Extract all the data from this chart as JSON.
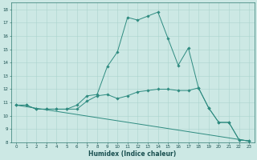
{
  "title": "",
  "xlabel": "Humidex (Indice chaleur)",
  "xlim": [
    -0.5,
    23.5
  ],
  "ylim": [
    8,
    18.5
  ],
  "yticks": [
    8,
    9,
    10,
    11,
    12,
    13,
    14,
    15,
    16,
    17,
    18
  ],
  "xticks": [
    0,
    1,
    2,
    3,
    4,
    5,
    6,
    7,
    8,
    9,
    10,
    11,
    12,
    13,
    14,
    15,
    16,
    17,
    18,
    19,
    20,
    21,
    22,
    23
  ],
  "line_color": "#2e8b80",
  "bg_color": "#cce8e4",
  "grid_color": "#aad4ce",
  "lines": [
    {
      "x": [
        0,
        1,
        2,
        3,
        4,
        5,
        6,
        7,
        8,
        9,
        10,
        11,
        12,
        13,
        14,
        15,
        16,
        17,
        18,
        19,
        20,
        21,
        22,
        23
      ],
      "y": [
        10.8,
        10.8,
        10.5,
        10.5,
        10.5,
        10.5,
        10.5,
        11.1,
        11.5,
        11.6,
        11.3,
        11.5,
        11.8,
        11.9,
        12.0,
        12.0,
        11.9,
        11.9,
        12.1,
        10.6,
        9.5,
        9.5,
        8.2,
        8.1
      ],
      "marker": true
    },
    {
      "x": [
        0,
        1,
        2,
        3,
        4,
        5,
        6,
        7,
        8,
        9,
        10,
        11,
        12,
        13,
        14,
        15,
        16,
        17,
        18,
        19,
        20,
        21,
        22,
        23
      ],
      "y": [
        10.8,
        10.8,
        10.5,
        10.5,
        10.5,
        10.5,
        10.8,
        11.5,
        11.6,
        13.7,
        14.8,
        17.4,
        17.2,
        17.5,
        17.8,
        15.8,
        13.8,
        15.1,
        12.1,
        10.6,
        9.5,
        9.5,
        8.2,
        8.1
      ],
      "marker": true
    },
    {
      "x": [
        0,
        23
      ],
      "y": [
        10.8,
        8.1
      ],
      "marker": false
    }
  ],
  "tick_fontsize": 4.0,
  "xlabel_fontsize": 5.5,
  "marker_size": 1.8,
  "linewidth": 0.7
}
